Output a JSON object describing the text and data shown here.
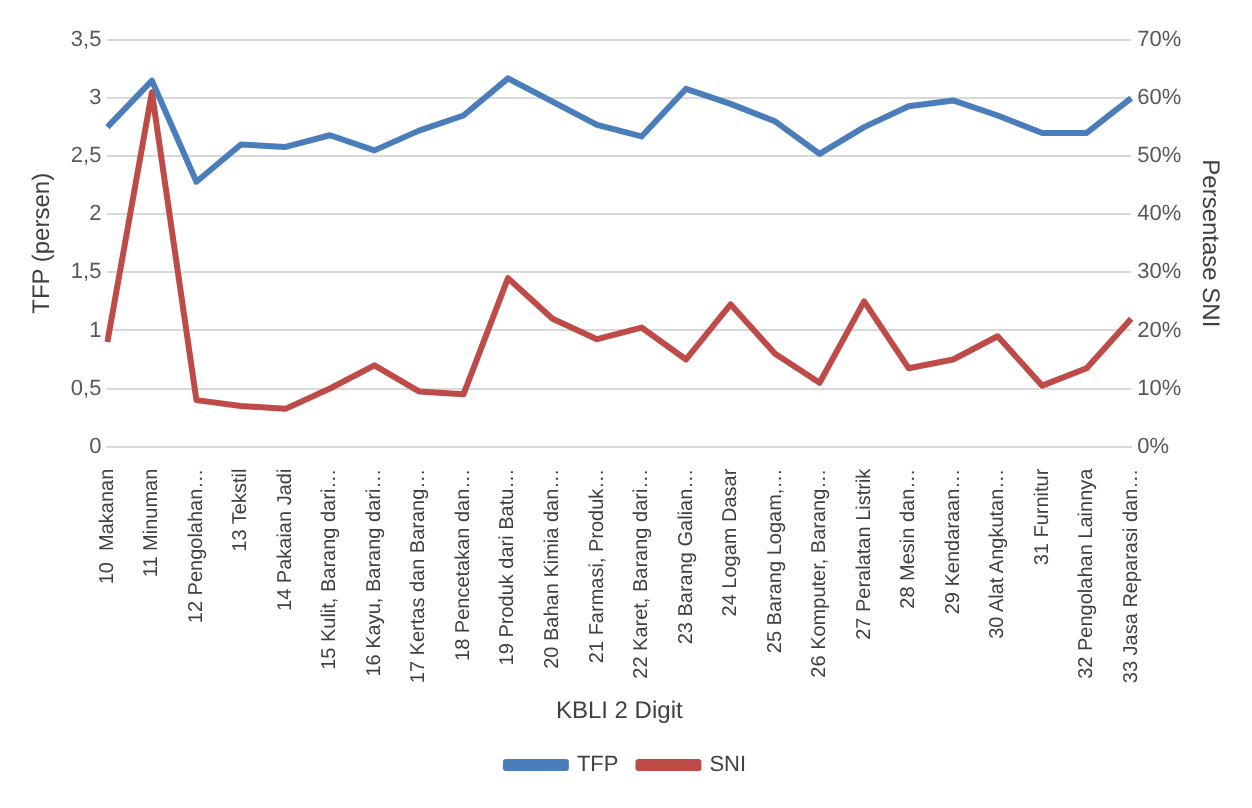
{
  "chart_data": {
    "type": "line",
    "xlabel": "KBLI 2 Digit",
    "ylabel": "TFP (persen)",
    "y2label": "Persentase SNI",
    "categories": [
      "10  Makanan",
      "11 Minuman",
      "12 Pengolahan…",
      "13 Tekstil",
      "14 Pakaian Jadi",
      "15 Kulit, Barang dari…",
      "16 Kayu, Barang dari…",
      "17 Kertas dan Barang…",
      "18 Pencetakan dan…",
      "19 Produk dari Batu…",
      "20 Bahan Kimia dan…",
      "21 Farmasi, Produk…",
      "22 Karet, Barang dari…",
      "23 Barang Galian…",
      "24 Logam Dasar",
      "25 Barang Logam,…",
      "26 Komputer, Barang…",
      "27 Peralatan Listrik",
      "28 Mesin dan…",
      "29 Kendaraan…",
      "30 Alat Angkutan…",
      "31 Furnitur",
      "32 Pengolahan Lainnya",
      "33 Jasa Reparasi dan…"
    ],
    "series": [
      {
        "name": "TFP",
        "color": "#4a7ebb",
        "values": [
          2.75,
          3.15,
          2.28,
          2.6,
          2.58,
          2.68,
          2.55,
          2.72,
          2.85,
          3.17,
          2.97,
          2.77,
          2.67,
          3.08,
          2.95,
          2.8,
          2.52,
          2.75,
          2.93,
          2.98,
          2.85,
          2.7,
          2.7,
          3.0
        ]
      },
      {
        "name": "SNI",
        "color": "#be4b48",
        "axis": "y2",
        "values": [
          18,
          61,
          8,
          7,
          6.5,
          10,
          14,
          9.5,
          9,
          29,
          22,
          18.5,
          20.5,
          15,
          24.5,
          16,
          11,
          25,
          13.5,
          15,
          19,
          10.5,
          13.5,
          22
        ]
      }
    ],
    "ylim": [
      0,
      3.5
    ],
    "yticks": [
      0,
      {
        "value": 0.5,
        "label": "0,5"
      },
      1,
      {
        "value": 1.5,
        "label": "1,5"
      },
      2,
      {
        "value": 2.5,
        "label": "2,5"
      },
      3,
      {
        "value": 3.5,
        "label": "3,5"
      }
    ],
    "y2lim": [
      0,
      70
    ],
    "y2ticks": [
      {
        "value": 0,
        "label": "0%"
      },
      {
        "value": 10,
        "label": "10%"
      },
      {
        "value": 20,
        "label": "20%"
      },
      {
        "value": 30,
        "label": "30%"
      },
      {
        "value": 40,
        "label": "40%"
      },
      {
        "value": 50,
        "label": "50%"
      },
      {
        "value": 60,
        "label": "60%"
      },
      {
        "value": 70,
        "label": "70%"
      }
    ],
    "grid": "y",
    "legend": "bottom",
    "marker": "none",
    "line_style": "solid"
  }
}
